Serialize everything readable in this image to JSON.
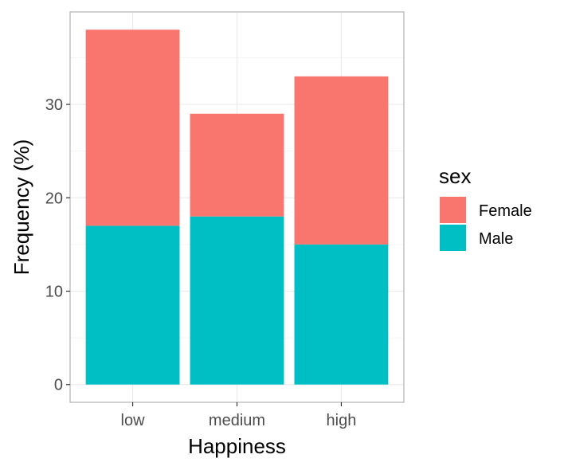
{
  "chart_data": {
    "type": "bar",
    "stacked": true,
    "categories": [
      "low",
      "medium",
      "high"
    ],
    "series": [
      {
        "name": "Male",
        "values": [
          17,
          18,
          15
        ],
        "color": "#00BFC4"
      },
      {
        "name": "Female",
        "values": [
          21,
          11,
          18
        ],
        "color": "#F8766D"
      }
    ],
    "xlabel": "Happiness",
    "ylabel": "Frequency (%)",
    "ylim": [
      -1.9,
      39.9
    ],
    "yticks": [
      0,
      10,
      20,
      30
    ],
    "legend": {
      "title": "sex",
      "position": "right",
      "order": [
        "Female",
        "Male"
      ]
    },
    "grid": true,
    "theme": {
      "panel_border": "#b3b3b3",
      "grid_major": "#ebebeb",
      "grid_minor": "#f5f5f5",
      "tick_color": "#333333"
    }
  }
}
